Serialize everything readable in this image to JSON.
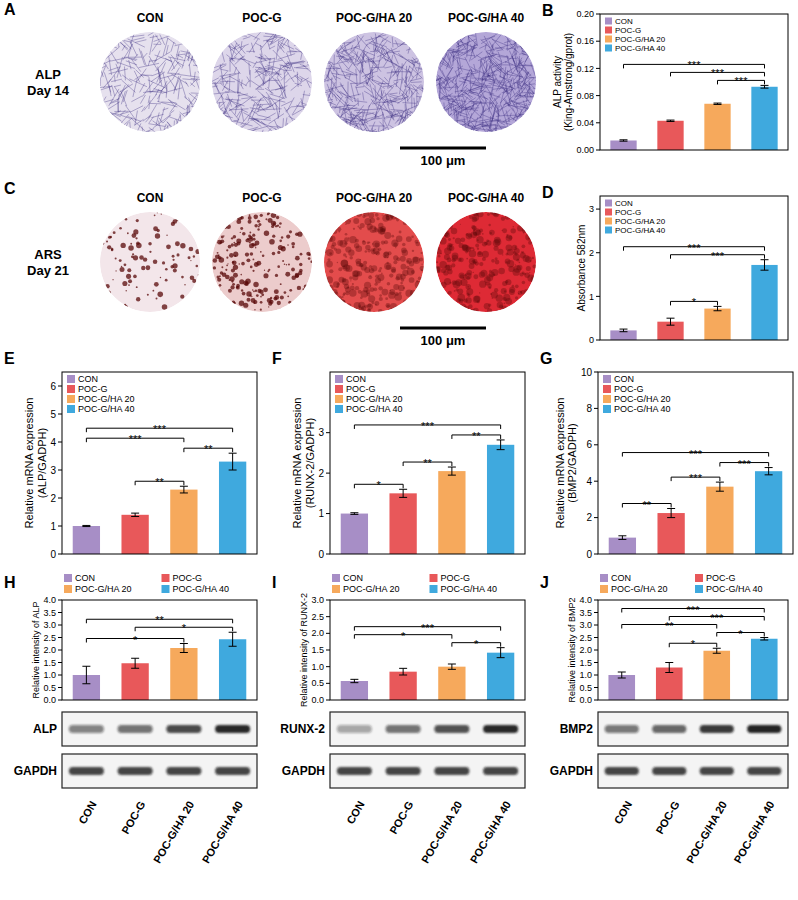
{
  "image_panels": [
    {
      "panel": "A",
      "row_label": [
        "ALP",
        "Day 14"
      ],
      "titles": [
        "CON",
        "POC-G",
        "POC-G/HA 20",
        "POC-G/HA 40"
      ],
      "scale_bar": "100 μm"
    },
    {
      "panel": "C",
      "row_label": [
        "ARS",
        "Day 21"
      ],
      "titles": [
        "CON",
        "POC-G",
        "POC-G/HA 20",
        "POC-G/HA 40"
      ],
      "scale_bar": "100 μm"
    }
  ],
  "chart_data": [
    {
      "type": "bar",
      "panel": "B",
      "y_label": [
        "ALP activity",
        "(King-Amstrong/gprot)"
      ],
      "categories": [
        "CON",
        "POC-G",
        "POC-G/HA 20",
        "POC-G/HA 40"
      ],
      "colors": [
        "#a78ec6",
        "#e8585a",
        "#f6a95c",
        "#3fa9de"
      ],
      "values": [
        0.014,
        0.043,
        0.068,
        0.093
      ],
      "errors": [
        0.001,
        0.001,
        0.001,
        0.002
      ],
      "ylim": [
        0,
        0.2
      ],
      "yticks": [
        {
          "value": 0,
          "label": "0.00"
        },
        {
          "value": 0.04,
          "label": "0.04"
        },
        {
          "value": 0.08,
          "label": "0.08"
        },
        {
          "value": 0.12,
          "label": "0.12"
        },
        {
          "value": 0.16,
          "label": "0.16"
        },
        {
          "value": 0.2,
          "label": "0.20"
        }
      ],
      "annotations": [
        {
          "from": 0,
          "to": 3,
          "text": "***"
        },
        {
          "from": 1,
          "to": 3,
          "text": "***"
        },
        {
          "from": 2,
          "to": 3,
          "text": "***"
        }
      ],
      "legend": "top-left",
      "grid": false,
      "tick_labels": "y"
    },
    {
      "type": "bar",
      "panel": "D",
      "y_label": [
        "Absorbance 582nm"
      ],
      "categories": [
        "CON",
        "POC-G",
        "POC-G/HA 20",
        "POC-G/HA 40"
      ],
      "colors": [
        "#a78ec6",
        "#e8585a",
        "#f6a95c",
        "#3fa9de"
      ],
      "values": [
        0.22,
        0.42,
        0.72,
        1.72
      ],
      "errors": [
        0.03,
        0.08,
        0.05,
        0.12
      ],
      "ylim": [
        0,
        3.3
      ],
      "yticks": [
        0,
        1,
        2,
        3
      ],
      "annotations": [
        {
          "from": 0,
          "to": 3,
          "text": "***"
        },
        {
          "from": 1,
          "to": 3,
          "text": "***"
        },
        {
          "from": 1,
          "to": 2,
          "text": "*"
        }
      ],
      "legend": "top-left",
      "grid": false,
      "tick_labels": "y"
    },
    {
      "type": "bar",
      "panel": "E",
      "y_label": [
        "Relative mRNA expression",
        "(ALP/GADPH)"
      ],
      "categories": [
        "CON",
        "POC-G",
        "POC-G/HA 20",
        "POC-G/HA 40"
      ],
      "colors": [
        "#a78ec6",
        "#e8585a",
        "#f6a95c",
        "#3fa9de"
      ],
      "values": [
        1.0,
        1.4,
        2.3,
        3.3
      ],
      "errors": [
        0.02,
        0.06,
        0.12,
        0.3
      ],
      "ylim": [
        0,
        6.5
      ],
      "yticks": [
        0,
        1,
        2,
        3,
        4,
        5,
        6
      ],
      "annotations": [
        {
          "from": 0,
          "to": 3,
          "text": "***"
        },
        {
          "from": 0,
          "to": 2,
          "text": "***"
        },
        {
          "from": 1,
          "to": 2,
          "text": "**"
        },
        {
          "from": 2,
          "to": 3,
          "text": "**"
        }
      ],
      "legend": "top-left",
      "grid": false,
      "tick_labels": "y"
    },
    {
      "type": "bar",
      "panel": "F",
      "y_label": [
        "Relative mRNA expression",
        "(RUNX-2/GADPH)"
      ],
      "categories": [
        "CON",
        "POC-G",
        "POC-G/HA 20",
        "POC-G/HA 40"
      ],
      "colors": [
        "#a78ec6",
        "#e8585a",
        "#f6a95c",
        "#3fa9de"
      ],
      "values": [
        1.0,
        1.5,
        2.05,
        2.7
      ],
      "errors": [
        0.02,
        0.1,
        0.1,
        0.12
      ],
      "ylim": [
        0,
        4.5
      ],
      "yticks": [
        0,
        1,
        2,
        3
      ],
      "annotations": [
        {
          "from": 0,
          "to": 3,
          "text": "***"
        },
        {
          "from": 0,
          "to": 1,
          "text": "*"
        },
        {
          "from": 1,
          "to": 2,
          "text": "**"
        },
        {
          "from": 2,
          "to": 3,
          "text": "**"
        }
      ],
      "legend": "top-left",
      "grid": false,
      "tick_labels": "y"
    },
    {
      "type": "bar",
      "panel": "G",
      "y_label": [
        "Relative mRNA expression",
        "(BMP2/GADPH)"
      ],
      "categories": [
        "CON",
        "POC-G",
        "POC-G/HA 20",
        "POC-G/HA 40"
      ],
      "colors": [
        "#a78ec6",
        "#e8585a",
        "#f6a95c",
        "#3fa9de"
      ],
      "values": [
        0.9,
        2.25,
        3.7,
        4.55
      ],
      "errors": [
        0.1,
        0.25,
        0.25,
        0.2
      ],
      "ylim": [
        0,
        10
      ],
      "yticks": [
        0,
        2,
        4,
        6,
        8,
        10
      ],
      "annotations": [
        {
          "from": 0,
          "to": 3,
          "text": "***"
        },
        {
          "from": 0,
          "to": 1,
          "text": "**"
        },
        {
          "from": 1,
          "to": 2,
          "text": "***"
        },
        {
          "from": 2,
          "to": 3,
          "text": "***"
        }
      ],
      "legend": "top-left",
      "grid": false,
      "tick_labels": "y"
    },
    {
      "type": "bar",
      "panel": "H",
      "y_label": [
        "Relative intensity of ALP"
      ],
      "categories": [
        "CON",
        "POC-G",
        "POC-G/HA 20",
        "POC-G/HA 40"
      ],
      "colors": [
        "#a78ec6",
        "#e8585a",
        "#f6a95c",
        "#3fa9de"
      ],
      "values": [
        1.0,
        1.47,
        2.08,
        2.43
      ],
      "errors": [
        0.35,
        0.2,
        0.18,
        0.28
      ],
      "ylim": [
        0,
        4
      ],
      "yticks": [
        {
          "value": 0,
          "label": "0.0"
        },
        {
          "value": 0.5,
          "label": "0.5"
        },
        {
          "value": 1,
          "label": "1.0"
        },
        {
          "value": 1.5,
          "label": "1.5"
        },
        {
          "value": 2,
          "label": "2.0"
        },
        {
          "value": 2.5,
          "label": "2.5"
        },
        {
          "value": 3,
          "label": "3.0"
        },
        {
          "value": 3.5,
          "label": "3.5"
        },
        {
          "value": 4,
          "label": "4.0"
        }
      ],
      "annotations": [
        {
          "from": 0,
          "to": 3,
          "text": "**"
        },
        {
          "from": 0,
          "to": 2,
          "text": "*"
        },
        {
          "from": 1,
          "to": 3,
          "text": "*"
        }
      ],
      "legend": "top",
      "grid": false,
      "tick_labels": "y"
    },
    {
      "type": "bar",
      "panel": "I",
      "y_label": [
        "Relative intensity of RUNX-2"
      ],
      "categories": [
        "CON",
        "POC-G",
        "POC-G/HA 20",
        "POC-G/HA 40"
      ],
      "colors": [
        "#a78ec6",
        "#e8585a",
        "#f6a95c",
        "#3fa9de"
      ],
      "values": [
        0.57,
        0.85,
        1.0,
        1.42
      ],
      "errors": [
        0.05,
        0.1,
        0.08,
        0.15
      ],
      "ylim": [
        0,
        3
      ],
      "yticks": [
        {
          "value": 0,
          "label": "0.0"
        },
        {
          "value": 0.5,
          "label": "0.5"
        },
        {
          "value": 1,
          "label": "1.0"
        },
        {
          "value": 1.5,
          "label": "1.5"
        },
        {
          "value": 2,
          "label": "2.0"
        },
        {
          "value": 2.5,
          "label": "2.5"
        },
        {
          "value": 3,
          "label": "3.0"
        }
      ],
      "annotations": [
        {
          "from": 0,
          "to": 3,
          "text": "***"
        },
        {
          "from": 0,
          "to": 2,
          "text": "*"
        },
        {
          "from": 2,
          "to": 3,
          "text": "*"
        }
      ],
      "legend": "top",
      "grid": false,
      "tick_labels": "y"
    },
    {
      "type": "bar",
      "panel": "J",
      "y_label": [
        "Relative intensity of BMP2"
      ],
      "categories": [
        "CON",
        "POC-G",
        "POC-G/HA 20",
        "POC-G/HA 40"
      ],
      "colors": [
        "#a78ec6",
        "#e8585a",
        "#f6a95c",
        "#3fa9de"
      ],
      "values": [
        1.0,
        1.3,
        1.97,
        2.45
      ],
      "errors": [
        0.12,
        0.2,
        0.1,
        0.05
      ],
      "ylim": [
        0,
        4
      ],
      "yticks": [
        {
          "value": 0,
          "label": "0.0"
        },
        {
          "value": 0.5,
          "label": "0.5"
        },
        {
          "value": 1,
          "label": "1.0"
        },
        {
          "value": 1.5,
          "label": "1.5"
        },
        {
          "value": 2,
          "label": "2.0"
        },
        {
          "value": 2.5,
          "label": "2.5"
        },
        {
          "value": 3,
          "label": "3.0"
        },
        {
          "value": 3.5,
          "label": "3.5"
        },
        {
          "value": 4,
          "label": "4.0"
        }
      ],
      "annotations": [
        {
          "from": 0,
          "to": 3,
          "text": "***"
        },
        {
          "from": 0,
          "to": 2,
          "text": "**"
        },
        {
          "from": 1,
          "to": 3,
          "text": "***"
        },
        {
          "from": 1,
          "to": 2,
          "text": "*"
        },
        {
          "from": 2,
          "to": 3,
          "text": "*"
        }
      ],
      "legend": "top",
      "grid": false,
      "tick_labels": "y"
    }
  ],
  "blots": [
    {
      "panel": "H",
      "rows": [
        "ALP",
        "GAPDH"
      ],
      "lanes": [
        "CON",
        "POC-G",
        "POC-G/HA 20",
        "POC-G/HA 40"
      ]
    },
    {
      "panel": "I",
      "rows": [
        "RUNX-2",
        "GAPDH"
      ],
      "lanes": [
        "CON",
        "POC-G",
        "POC-G/HA 20",
        "POC-G/HA 40"
      ]
    },
    {
      "panel": "J",
      "rows": [
        "BMP2",
        "GAPDH"
      ],
      "lanes": [
        "CON",
        "POC-G",
        "POC-G/HA 20",
        "POC-G/HA 40"
      ]
    }
  ]
}
